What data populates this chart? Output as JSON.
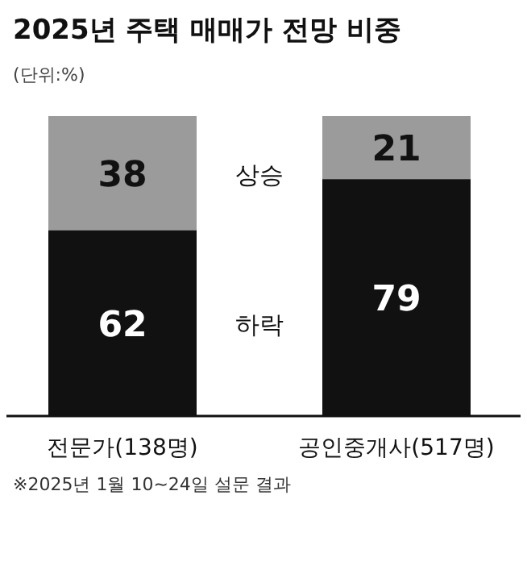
{
  "chart_data": {
    "type": "bar",
    "stacked": true,
    "data_labels": true,
    "title": "2025년 주택 매매가 전망 비중",
    "subtitle": "(단위:%)",
    "categories": [
      "전문가(138명)",
      "공인중개사(517명)"
    ],
    "series": [
      {
        "name": "하락",
        "color": "#111111",
        "values": [
          62,
          79
        ]
      },
      {
        "name": "상승",
        "color": "#9b9b9b",
        "values": [
          38,
          21
        ]
      }
    ],
    "annotations": [
      "※2025년 1월 10~24일 설문 결과"
    ]
  }
}
